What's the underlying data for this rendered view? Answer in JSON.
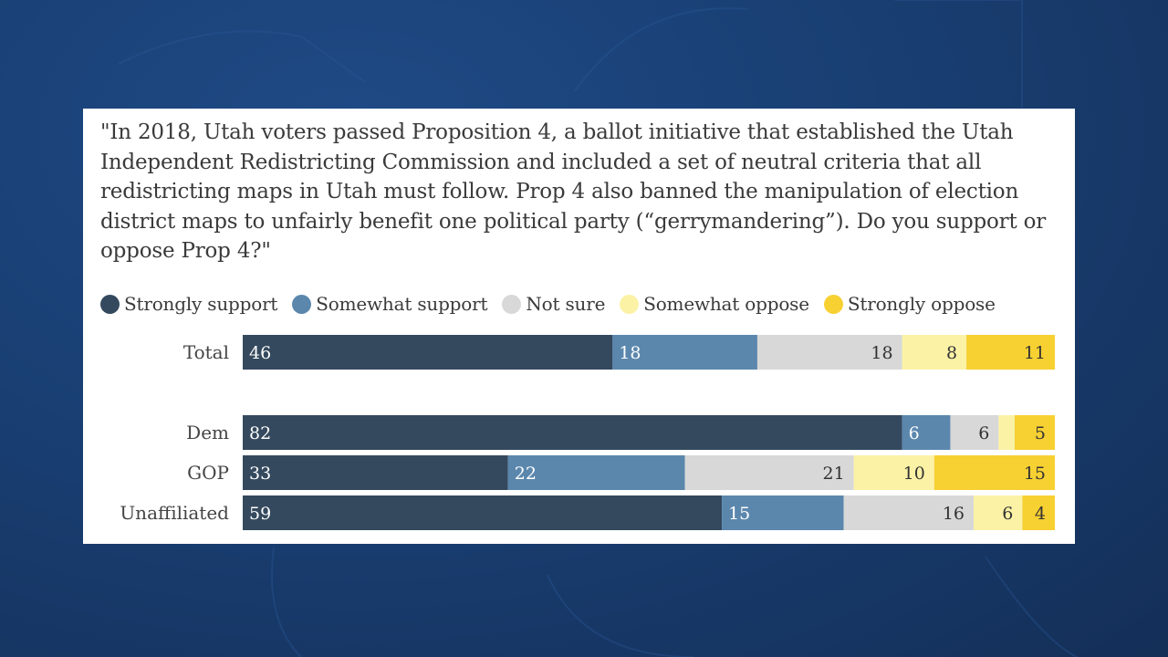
{
  "question": "\"In 2018, Utah voters passed Proposition 4, a ballot initiative that established the Utah Independent Redistricting Commission and included a set of neutral criteria that all redistricting maps in Utah must follow. Prop 4 also banned the manipulation of election district maps to unfairly benefit one political party (“gerrymandering”). Do you support or oppose Prop 4?\"",
  "colors": {
    "strongly_support": "#34495e",
    "somewhat_support": "#5b87ad",
    "not_sure": "#d8d8d8",
    "somewhat_oppose": "#fbf2a6",
    "strongly_oppose": "#f7d032"
  },
  "chart_data": {
    "type": "bar",
    "orientation": "horizontal",
    "stacked": true,
    "title": "",
    "xlim": [
      0,
      100
    ],
    "categories": [
      "Total",
      "Dem",
      "GOP",
      "Unaffiliated"
    ],
    "series": [
      {
        "name": "Strongly support",
        "key": "strongly_support",
        "values": [
          46,
          82,
          33,
          59
        ]
      },
      {
        "name": "Somewhat support",
        "key": "somewhat_support",
        "values": [
          18,
          6,
          22,
          15
        ]
      },
      {
        "name": "Not sure",
        "key": "not_sure",
        "values": [
          18,
          6,
          21,
          16
        ]
      },
      {
        "name": "Somewhat oppose",
        "key": "somewhat_oppose",
        "values": [
          8,
          2,
          10,
          6
        ]
      },
      {
        "name": "Strongly oppose",
        "key": "strongly_oppose",
        "values": [
          11,
          5,
          15,
          4
        ]
      }
    ],
    "labels": [
      [
        "46",
        "18",
        "18",
        "8",
        "11"
      ],
      [
        "82",
        "6",
        "6",
        "",
        "5"
      ],
      [
        "33",
        "22",
        "21",
        "10",
        "15"
      ],
      [
        "59",
        "15",
        "16",
        "6",
        "4"
      ]
    ]
  }
}
